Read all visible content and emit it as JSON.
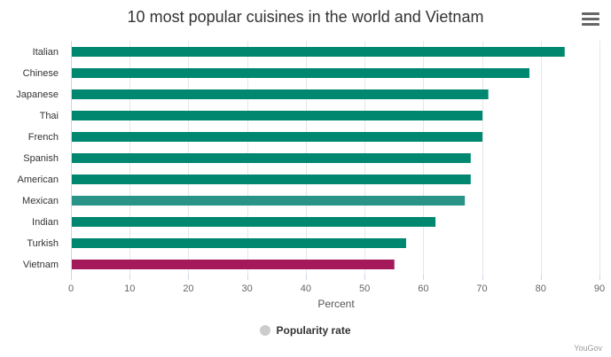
{
  "chart_data": {
    "type": "bar",
    "orientation": "horizontal",
    "title": "10 most popular cuisines in the world and Vietnam",
    "categories": [
      "Italian",
      "Chinese",
      "Japanese",
      "Thai",
      "French",
      "Spanish",
      "American",
      "Mexican",
      "Indian",
      "Turkish",
      "Vietnam"
    ],
    "series": [
      {
        "name": "Popularity rate",
        "values": [
          84,
          78,
          71,
          70,
          70,
          68,
          68,
          67,
          62,
          57,
          55
        ]
      }
    ],
    "xlabel": "Percent",
    "ylabel": "",
    "xlim": [
      0,
      90
    ],
    "ticks": [
      "0",
      "10",
      "20",
      "30",
      "40",
      "50",
      "60",
      "70",
      "80",
      "90"
    ],
    "grid": true,
    "legend_position": "bottom-center",
    "colors": {
      "default": "#00876f",
      "highlight_mexican": "#2a9387",
      "vietnam": "#a4195a",
      "legend_marker": "#cccccc"
    },
    "bar_colors": [
      "#00876f",
      "#00876f",
      "#00876f",
      "#00876f",
      "#00876f",
      "#00876f",
      "#00876f",
      "#2a9387",
      "#00876f",
      "#00876f",
      "#a4195a"
    ]
  },
  "legend": {
    "label": "Popularity rate"
  },
  "credits": "YouGov",
  "menu": {
    "icon": "hamburger-menu-icon"
  }
}
